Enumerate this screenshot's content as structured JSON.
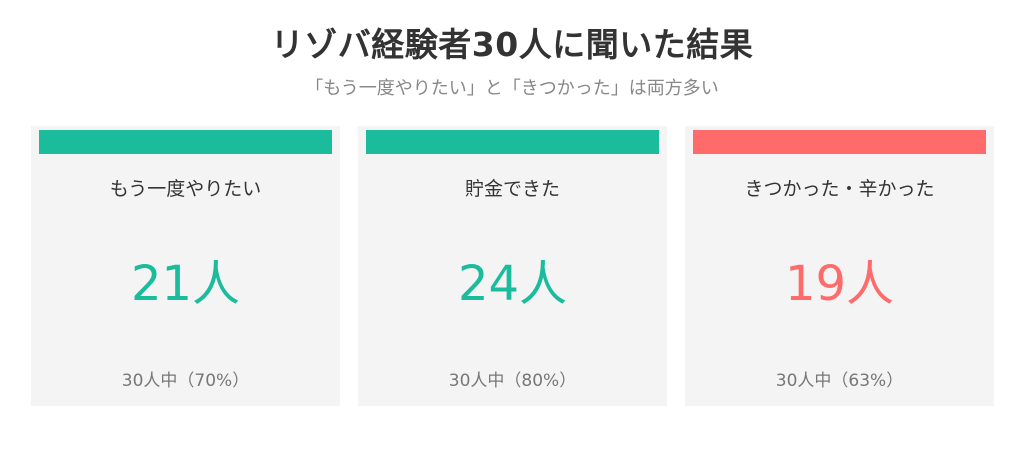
{
  "header": {
    "title": "リゾバ経験者30人に聞いた結果",
    "subtitle": "「もう一度やりたい」と「きつかった」は両方多い"
  },
  "colors": {
    "positive": "#1abc9c",
    "negative": "#ff6b6b"
  },
  "cards": [
    {
      "label": "もう一度やりたい",
      "count": "21人",
      "note": "30人中（70%）",
      "tone": "positive"
    },
    {
      "label": "貯金できた",
      "count": "24人",
      "note": "30人中（80%）",
      "tone": "positive"
    },
    {
      "label": "きつかった・辛かった",
      "count": "19人",
      "note": "30人中（63%）",
      "tone": "negative"
    }
  ]
}
